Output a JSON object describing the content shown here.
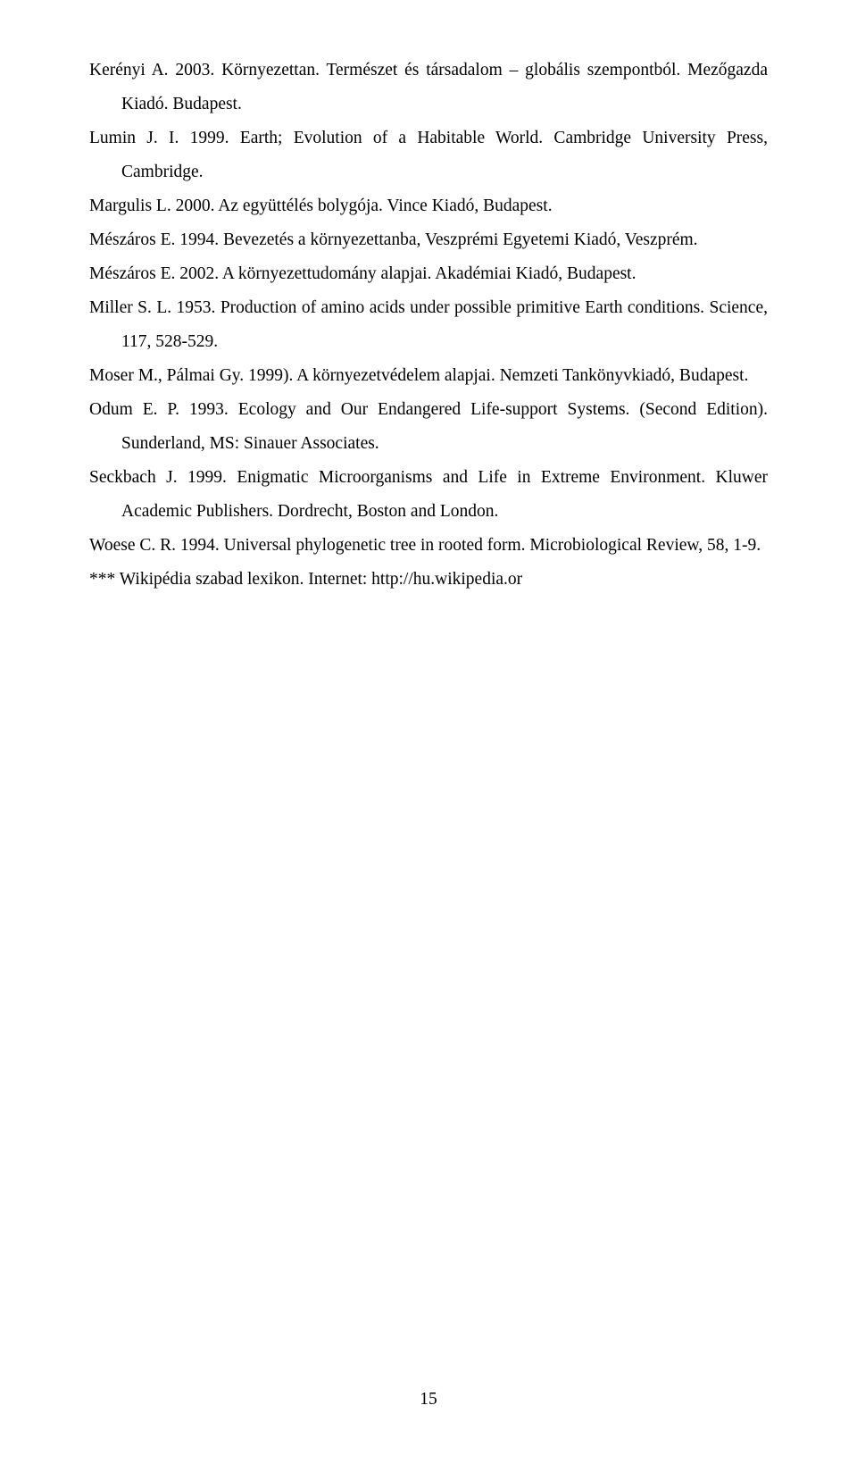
{
  "references": [
    "Kerényi A. 2003. Környezettan. Természet és társadalom – globális szempontból. Mezőgazda Kiadó. Budapest.",
    "Lumin J. I. 1999. Earth; Evolution of a Habitable World. Cambridge University Press, Cambridge.",
    "Margulis L. 2000. Az együttélés bolygója. Vince Kiadó, Budapest.",
    "Mészáros E. 1994. Bevezetés a környezettanba, Veszprémi Egyetemi Kiadó, Veszprém.",
    "Mészáros E. 2002. A környezettudomány alapjai. Akadémiai Kiadó, Budapest.",
    "Miller S. L. 1953. Production of amino acids under possible primitive Earth conditions. Science, 117, 528-529.",
    "Moser M., Pálmai Gy. 1999). A környezetvédelem alapjai. Nemzeti Tankönyvkiadó, Budapest.",
    "Odum E. P. 1993. Ecology and Our Endangered Life-support Systems. (Second Edition). Sunderland, MS: Sinauer Associates.",
    "Seckbach J. 1999. Enigmatic Microorganisms and Life in Extreme Environment. Kluwer Academic Publishers. Dordrecht, Boston and London.",
    "Woese C. R. 1994. Universal phylogenetic tree in rooted form. Microbiological Review, 58, 1-9.",
    "*** Wikipédia szabad lexikon. Internet: http://hu.wikipedia.or"
  ],
  "page_number": "15"
}
